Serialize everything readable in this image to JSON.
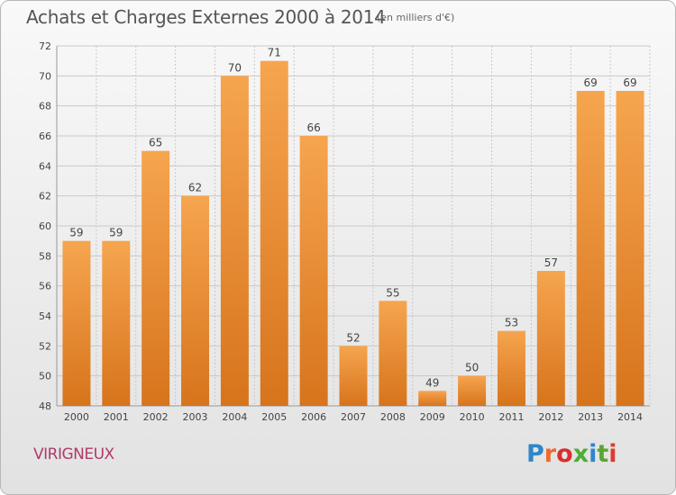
{
  "header": {
    "title": "Achats et Charges Externes 2000 à 2014",
    "subtitle": "(en milliers d'€)"
  },
  "footer": {
    "commune": "VIRIGNEUX",
    "logo_text": "Proxiti"
  },
  "colors": {
    "bar_light": "#f6a54f",
    "bar_dark": "#d7741c",
    "grid": "#c9c9c9",
    "logo": [
      "#2f86c9",
      "#ef6a2f",
      "#d6312e",
      "#4caf35",
      "#2f86c9",
      "#5aa62d",
      "#e03a2f"
    ]
  },
  "chart_data": {
    "type": "bar",
    "title": "Achats et Charges Externes 2000 à 2014",
    "subtitle": "(en milliers d'€)",
    "xlabel": "",
    "ylabel": "",
    "categories": [
      "2000",
      "2001",
      "2002",
      "2003",
      "2004",
      "2005",
      "2006",
      "2007",
      "2008",
      "2009",
      "2010",
      "2011",
      "2012",
      "2013",
      "2014"
    ],
    "values": [
      59,
      59,
      65,
      62,
      70,
      71,
      66,
      52,
      55,
      49,
      50,
      53,
      57,
      69,
      69
    ],
    "ylim": [
      48,
      72
    ],
    "yticks": [
      48,
      50,
      52,
      54,
      56,
      58,
      60,
      62,
      64,
      66,
      68,
      70,
      72
    ],
    "grid": true,
    "data_labels": true
  }
}
